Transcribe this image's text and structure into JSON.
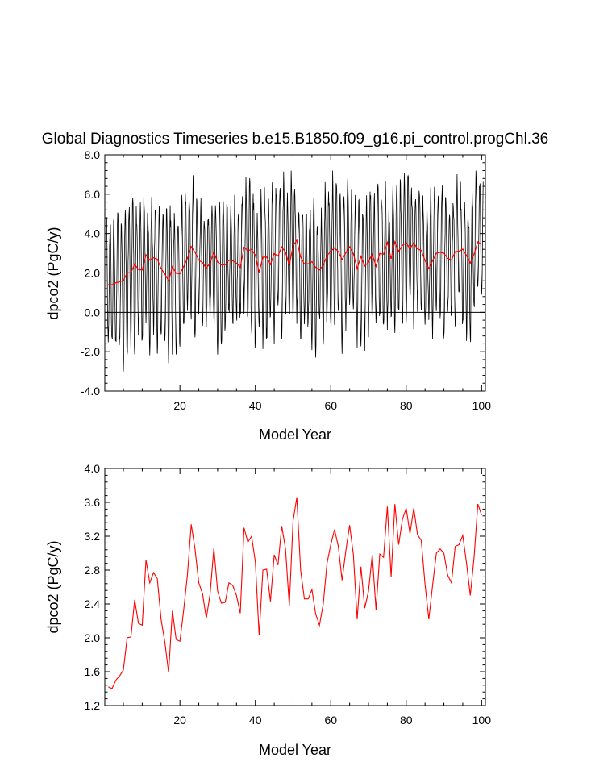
{
  "chart_data": [
    {
      "type": "line",
      "title": "Global Diagnostics Timeseries b.e15.B1850.f09_g16.pi_control.progChl.36",
      "xlabel": "Model Year",
      "ylabel": "dpco2 (PgC/y)",
      "xlim": [
        0.08,
        101
      ],
      "ylim": [
        -4.0,
        8.0
      ],
      "x_ticks": [
        "20",
        "40",
        "60",
        "80",
        "100"
      ],
      "y_ticks": [
        "-4.0",
        "-2.0",
        "0.0",
        "2.0",
        "4.0",
        "6.0",
        "8.0"
      ],
      "reference_line": 0,
      "series": [
        {
          "kind": "monthly",
          "color": "#000000",
          "x_start": 0.5,
          "x_step": 0.08333,
          "note_values": "seasonal cycle of 1200 monthly values; range approx -3.0 to 7.1; annual mean given by the red series",
          "seasonal_amplitude_high": 3.0,
          "seasonal_amplitude_low": 3.6
        },
        {
          "kind": "annual",
          "color": "#ff0000",
          "x_start": 1,
          "values": [
            1.42,
            1.4,
            1.5,
            1.55,
            1.62,
            2.0,
            2.01,
            2.45,
            2.17,
            2.15,
            2.92,
            2.65,
            2.77,
            2.7,
            2.22,
            1.95,
            1.59,
            2.32,
            1.98,
            1.96,
            2.33,
            2.75,
            3.34,
            3.05,
            2.65,
            2.52,
            2.23,
            2.52,
            3.06,
            2.55,
            2.41,
            2.42,
            2.65,
            2.62,
            2.5,
            2.29,
            3.3,
            3.13,
            3.2,
            2.9,
            2.03,
            2.8,
            2.81,
            2.43,
            2.98,
            2.86,
            3.32,
            3.05,
            2.38,
            3.38,
            3.66,
            2.8,
            2.46,
            2.46,
            2.57,
            2.28,
            2.15,
            2.4,
            2.88,
            3.1,
            3.28,
            3.08,
            2.68,
            3.03,
            3.33,
            2.98,
            2.22,
            2.84,
            2.35,
            2.55,
            2.98,
            2.33,
            2.99,
            2.95,
            3.55,
            2.72,
            3.58,
            3.1,
            3.4,
            3.53,
            3.23,
            3.53,
            3.22,
            3.15,
            2.63,
            2.22,
            2.62,
            3.0,
            3.05,
            3.0,
            2.74,
            2.65,
            3.08,
            3.1,
            3.21,
            2.88,
            2.5,
            2.95,
            3.58,
            3.45
          ]
        }
      ]
    },
    {
      "type": "line",
      "xlabel": "Model Year",
      "ylabel": "dpco2 (PgC/y)",
      "xlim": [
        0.08,
        101
      ],
      "ylim": [
        1.2,
        4.0
      ],
      "x_ticks": [
        "20",
        "40",
        "60",
        "80",
        "100"
      ],
      "y_ticks": [
        "1.2",
        "1.6",
        "2.0",
        "2.4",
        "2.8",
        "3.2",
        "3.6",
        "4.0"
      ],
      "series": [
        {
          "kind": "annual",
          "color": "#ff0000",
          "x_start": 1,
          "same_values_as": "chart_data.0.series.1.values"
        }
      ]
    }
  ]
}
